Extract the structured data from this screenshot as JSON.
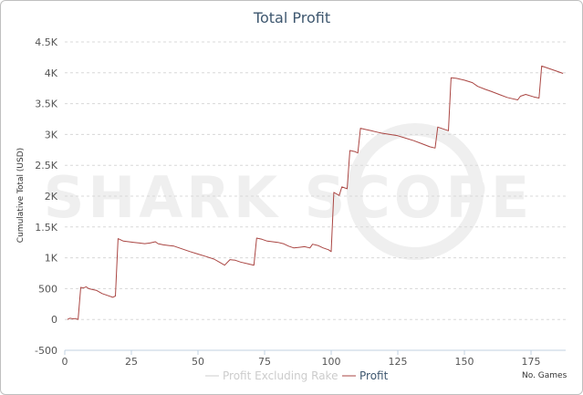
{
  "chart_data": {
    "type": "line",
    "title": "Total Profit",
    "ylabel": "Cumulative Total (USD)",
    "xlabel_note": "No. Games",
    "watermark": "SHARK SCOPE",
    "xlim": [
      0,
      188
    ],
    "ylim": [
      -500,
      4500
    ],
    "x_ticks": [
      0,
      25,
      50,
      75,
      100,
      125,
      150,
      175
    ],
    "y_ticks": [
      -500,
      0,
      500,
      1000,
      1500,
      2000,
      2500,
      3000,
      3500,
      4000,
      4500
    ],
    "y_tick_labels": [
      "-500",
      "0",
      "500",
      "1K",
      "1.5K",
      "2K",
      "2.5K",
      "3K",
      "3.5K",
      "4K",
      "4.5K"
    ],
    "grid": true,
    "legend_position": "bottom",
    "legend": [
      "Profit Excluding Rake",
      "Profit"
    ],
    "series": [
      {
        "name": "Profit",
        "color": "#aa4643",
        "points": [
          [
            1,
            0
          ],
          [
            2,
            20
          ],
          [
            3,
            10
          ],
          [
            4,
            15
          ],
          [
            5,
            0
          ],
          [
            6,
            520
          ],
          [
            7,
            510
          ],
          [
            8,
            530
          ],
          [
            9,
            500
          ],
          [
            10,
            490
          ],
          [
            12,
            470
          ],
          [
            14,
            420
          ],
          [
            16,
            390
          ],
          [
            18,
            360
          ],
          [
            19,
            380
          ],
          [
            20,
            1310
          ],
          [
            22,
            1270
          ],
          [
            24,
            1260
          ],
          [
            26,
            1250
          ],
          [
            28,
            1240
          ],
          [
            30,
            1230
          ],
          [
            32,
            1240
          ],
          [
            34,
            1260
          ],
          [
            35,
            1230
          ],
          [
            37,
            1210
          ],
          [
            39,
            1200
          ],
          [
            41,
            1190
          ],
          [
            43,
            1160
          ],
          [
            45,
            1130
          ],
          [
            47,
            1100
          ],
          [
            50,
            1060
          ],
          [
            53,
            1020
          ],
          [
            56,
            980
          ],
          [
            58,
            930
          ],
          [
            60,
            880
          ],
          [
            62,
            970
          ],
          [
            64,
            960
          ],
          [
            66,
            930
          ],
          [
            69,
            900
          ],
          [
            71,
            880
          ],
          [
            72,
            1320
          ],
          [
            74,
            1300
          ],
          [
            76,
            1270
          ],
          [
            78,
            1260
          ],
          [
            80,
            1250
          ],
          [
            82,
            1230
          ],
          [
            84,
            1190
          ],
          [
            86,
            1160
          ],
          [
            88,
            1170
          ],
          [
            90,
            1180
          ],
          [
            92,
            1160
          ],
          [
            93,
            1220
          ],
          [
            95,
            1200
          ],
          [
            97,
            1160
          ],
          [
            99,
            1130
          ],
          [
            100,
            1100
          ],
          [
            101,
            2060
          ],
          [
            103,
            2010
          ],
          [
            104,
            2150
          ],
          [
            106,
            2120
          ],
          [
            107,
            2740
          ],
          [
            109,
            2720
          ],
          [
            110,
            2700
          ],
          [
            111,
            3100
          ],
          [
            113,
            3080
          ],
          [
            115,
            3060
          ],
          [
            117,
            3040
          ],
          [
            119,
            3020
          ],
          [
            122,
            3000
          ],
          [
            125,
            2980
          ],
          [
            128,
            2940
          ],
          [
            131,
            2900
          ],
          [
            134,
            2850
          ],
          [
            137,
            2800
          ],
          [
            139,
            2780
          ],
          [
            140,
            3120
          ],
          [
            142,
            3090
          ],
          [
            144,
            3060
          ],
          [
            145,
            3920
          ],
          [
            147,
            3910
          ],
          [
            150,
            3880
          ],
          [
            153,
            3840
          ],
          [
            155,
            3780
          ],
          [
            158,
            3730
          ],
          [
            160,
            3700
          ],
          [
            163,
            3650
          ],
          [
            166,
            3600
          ],
          [
            168,
            3580
          ],
          [
            170,
            3560
          ],
          [
            171,
            3620
          ],
          [
            173,
            3650
          ],
          [
            176,
            3610
          ],
          [
            178,
            3590
          ],
          [
            179,
            4110
          ],
          [
            181,
            4080
          ],
          [
            183,
            4050
          ],
          [
            185,
            4020
          ],
          [
            187,
            3990
          ]
        ]
      },
      {
        "name": "Profit Excluding Rake",
        "color": "#cccccc",
        "points": []
      }
    ]
  }
}
